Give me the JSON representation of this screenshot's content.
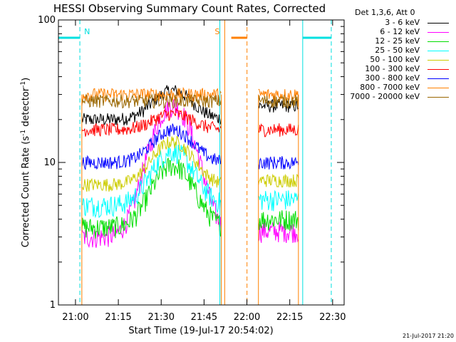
{
  "chart_data": {
    "type": "line",
    "title": "HESSI Observing Summary Count Rates, Corrected",
    "xlabel": "Start Time (19-Jul-17 20:54:02)",
    "ylabel_parts": [
      "Corrected Count Rate (s",
      "-1",
      " detector",
      "-1",
      ")"
    ],
    "x_unit": "minutes since 20:54:02",
    "xlim": [
      0,
      100
    ],
    "ylim": [
      1,
      100
    ],
    "yscale": "log",
    "xticks": [
      {
        "x": 5.97,
        "label": "21:00"
      },
      {
        "x": 20.97,
        "label": "21:15"
      },
      {
        "x": 35.97,
        "label": "21:30"
      },
      {
        "x": 50.97,
        "label": "21:45"
      },
      {
        "x": 65.97,
        "label": "22:00"
      },
      {
        "x": 80.97,
        "label": "22:15"
      },
      {
        "x": 95.97,
        "label": "22:30"
      }
    ],
    "yticks": [
      {
        "y": 1,
        "label": "1"
      },
      {
        "y": 10,
        "label": "10"
      },
      {
        "y": 100,
        "label": "100"
      }
    ],
    "legend_header": "Det 1,3,6, Att 0",
    "legend_placement": "outside-right",
    "grid": false,
    "segments": [
      [
        8.2,
        57.0
      ],
      [
        70.0,
        84.0
      ]
    ],
    "series": [
      {
        "name": "3 - 6 keV",
        "color": "#000000",
        "base": 20,
        "peak": 32,
        "second": 25
      },
      {
        "name": "6 - 12 keV",
        "color": "#ff00ff",
        "base": 3,
        "peak": 25,
        "second": 3.3
      },
      {
        "name": "12 - 25 keV",
        "color": "#00dd00",
        "base": 3.5,
        "peak": 9.5,
        "second": 4
      },
      {
        "name": "25 - 50 keV",
        "color": "#00ffff",
        "base": 5,
        "peak": 12,
        "second": 5.5
      },
      {
        "name": "50 - 100 keV",
        "color": "#cccc00",
        "base": 7,
        "peak": 14,
        "second": 7.5
      },
      {
        "name": "100 - 300 keV",
        "color": "#ff0000",
        "base": 17,
        "peak": 22,
        "second": 17
      },
      {
        "name": "300 - 800 keV",
        "color": "#0000ff",
        "base": 10,
        "peak": 17,
        "second": 10
      },
      {
        "name": "800 - 7000 keV",
        "color": "#ff8000",
        "base": 30,
        "peak": 30,
        "second": 30
      },
      {
        "name": "7000 - 20000 keV",
        "color": "#996600",
        "base": 27,
        "peak": 27,
        "second": 27
      }
    ],
    "markers": [
      {
        "label": "N",
        "color": "#00e0e0",
        "bar": [
          0,
          7.5
        ],
        "line_dashed": 7.5,
        "line_solid": null
      },
      {
        "label": "",
        "color": "#00e0e0",
        "bar": [
          85.5,
          95.5
        ],
        "line_dashed": 95.5,
        "line_solid": 85.5
      },
      {
        "label": "",
        "color": "#00e0e0",
        "bar": null,
        "line_dashed": null,
        "line_solid": 56.5
      },
      {
        "label": "S",
        "color": "#ff8000",
        "bar": [
          60.5,
          66.0
        ],
        "line_dashed": 66.0,
        "line_solid": 58.2
      }
    ],
    "footer_stamp": "21-Jul-2017 21:20"
  }
}
